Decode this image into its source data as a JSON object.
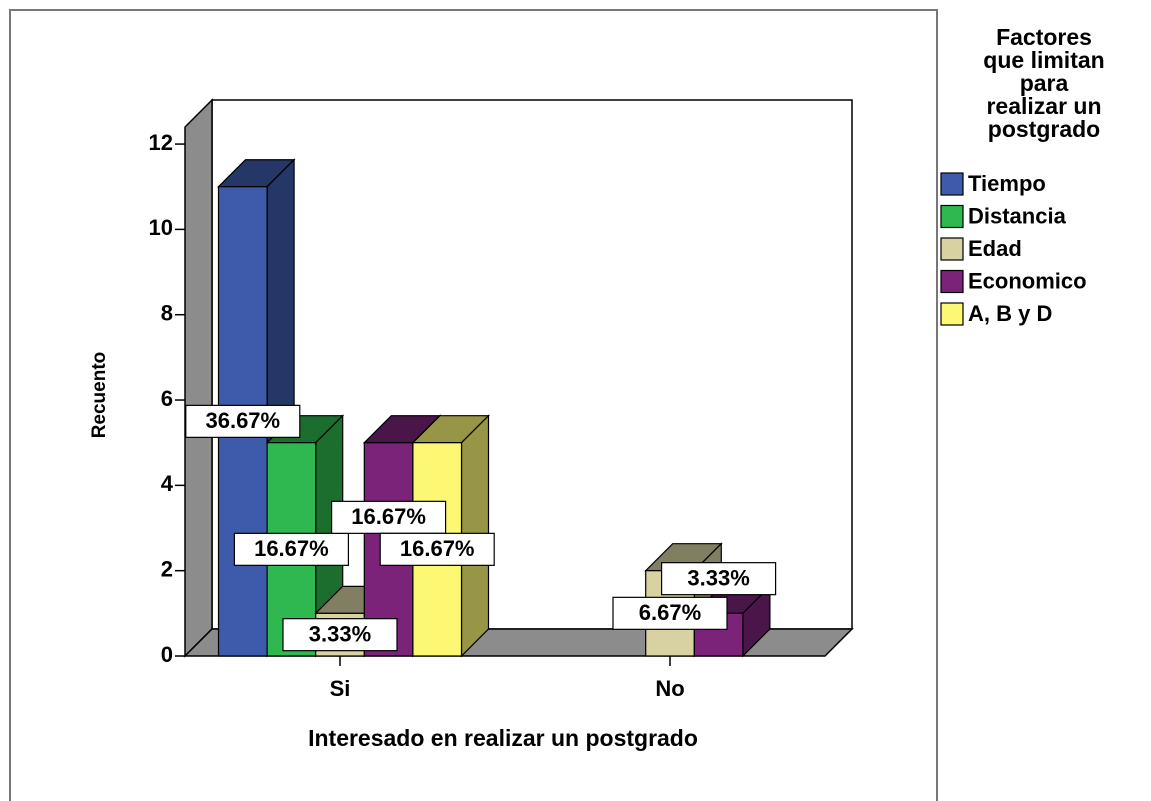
{
  "chart_data": {
    "type": "bar3d",
    "x_label": "Interesado en realizar un postgrado",
    "y_label": "Recuento",
    "legend_title": "Factores que limitan para realizar un postgrado",
    "categories": [
      "Si",
      "No"
    ],
    "series": [
      {
        "name": "Tiempo",
        "color": "#3e5bab",
        "values": [
          11,
          0
        ],
        "value_labels": [
          "36.67%",
          null
        ]
      },
      {
        "name": "Distancia",
        "color": "#2fb84f",
        "values": [
          5,
          0
        ],
        "value_labels": [
          "16.67%",
          null
        ]
      },
      {
        "name": "Edad",
        "color": "#d8d2a2",
        "values": [
          1,
          2
        ],
        "value_labels": [
          "3.33%",
          "6.67%"
        ]
      },
      {
        "name": "Economico",
        "color": "#7b2378",
        "values": [
          5,
          1
        ],
        "value_labels": [
          "16.67%",
          "3.33%"
        ]
      },
      {
        "name": "A, B y D",
        "color": "#fcf874",
        "values": [
          5,
          0
        ],
        "value_labels": [
          "16.67%",
          null
        ]
      }
    ],
    "ylim": [
      0,
      12.4
    ],
    "yticks": [
      0,
      2,
      4,
      6,
      8,
      10,
      12
    ],
    "legend": "right"
  }
}
